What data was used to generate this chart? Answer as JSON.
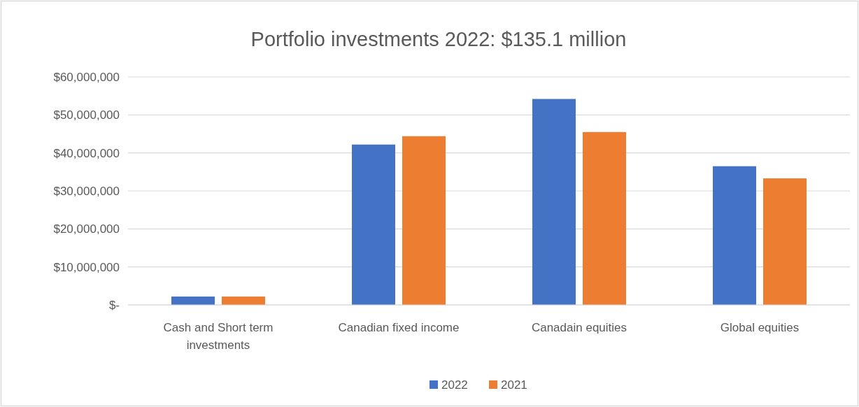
{
  "chart_data": {
    "type": "bar",
    "title": "Portfolio investments 2022: $135.1 million",
    "categories": [
      "Cash and Short term investments",
      "Canadian fixed income",
      "Canadain equities",
      "Global equities"
    ],
    "series": [
      {
        "name": "2022",
        "color": "#4472c4",
        "values": [
          2200000,
          42200000,
          54200000,
          36500000
        ]
      },
      {
        "name": "2021",
        "color": "#ed7d31",
        "values": [
          2200000,
          44400000,
          45500000,
          33300000
        ]
      }
    ],
    "ylim": [
      0,
      60000000
    ],
    "yticks": [
      {
        "value": 0,
        "label": "$-"
      },
      {
        "value": 10000000,
        "label": "$10,000,000"
      },
      {
        "value": 20000000,
        "label": "$20,000,000"
      },
      {
        "value": 30000000,
        "label": "$30,000,000"
      },
      {
        "value": 40000000,
        "label": "$40,000,000"
      },
      {
        "value": 50000000,
        "label": "$50,000,000"
      },
      {
        "value": 60000000,
        "label": "$60,000,000"
      }
    ],
    "grid": "y",
    "legend": "bottom"
  }
}
